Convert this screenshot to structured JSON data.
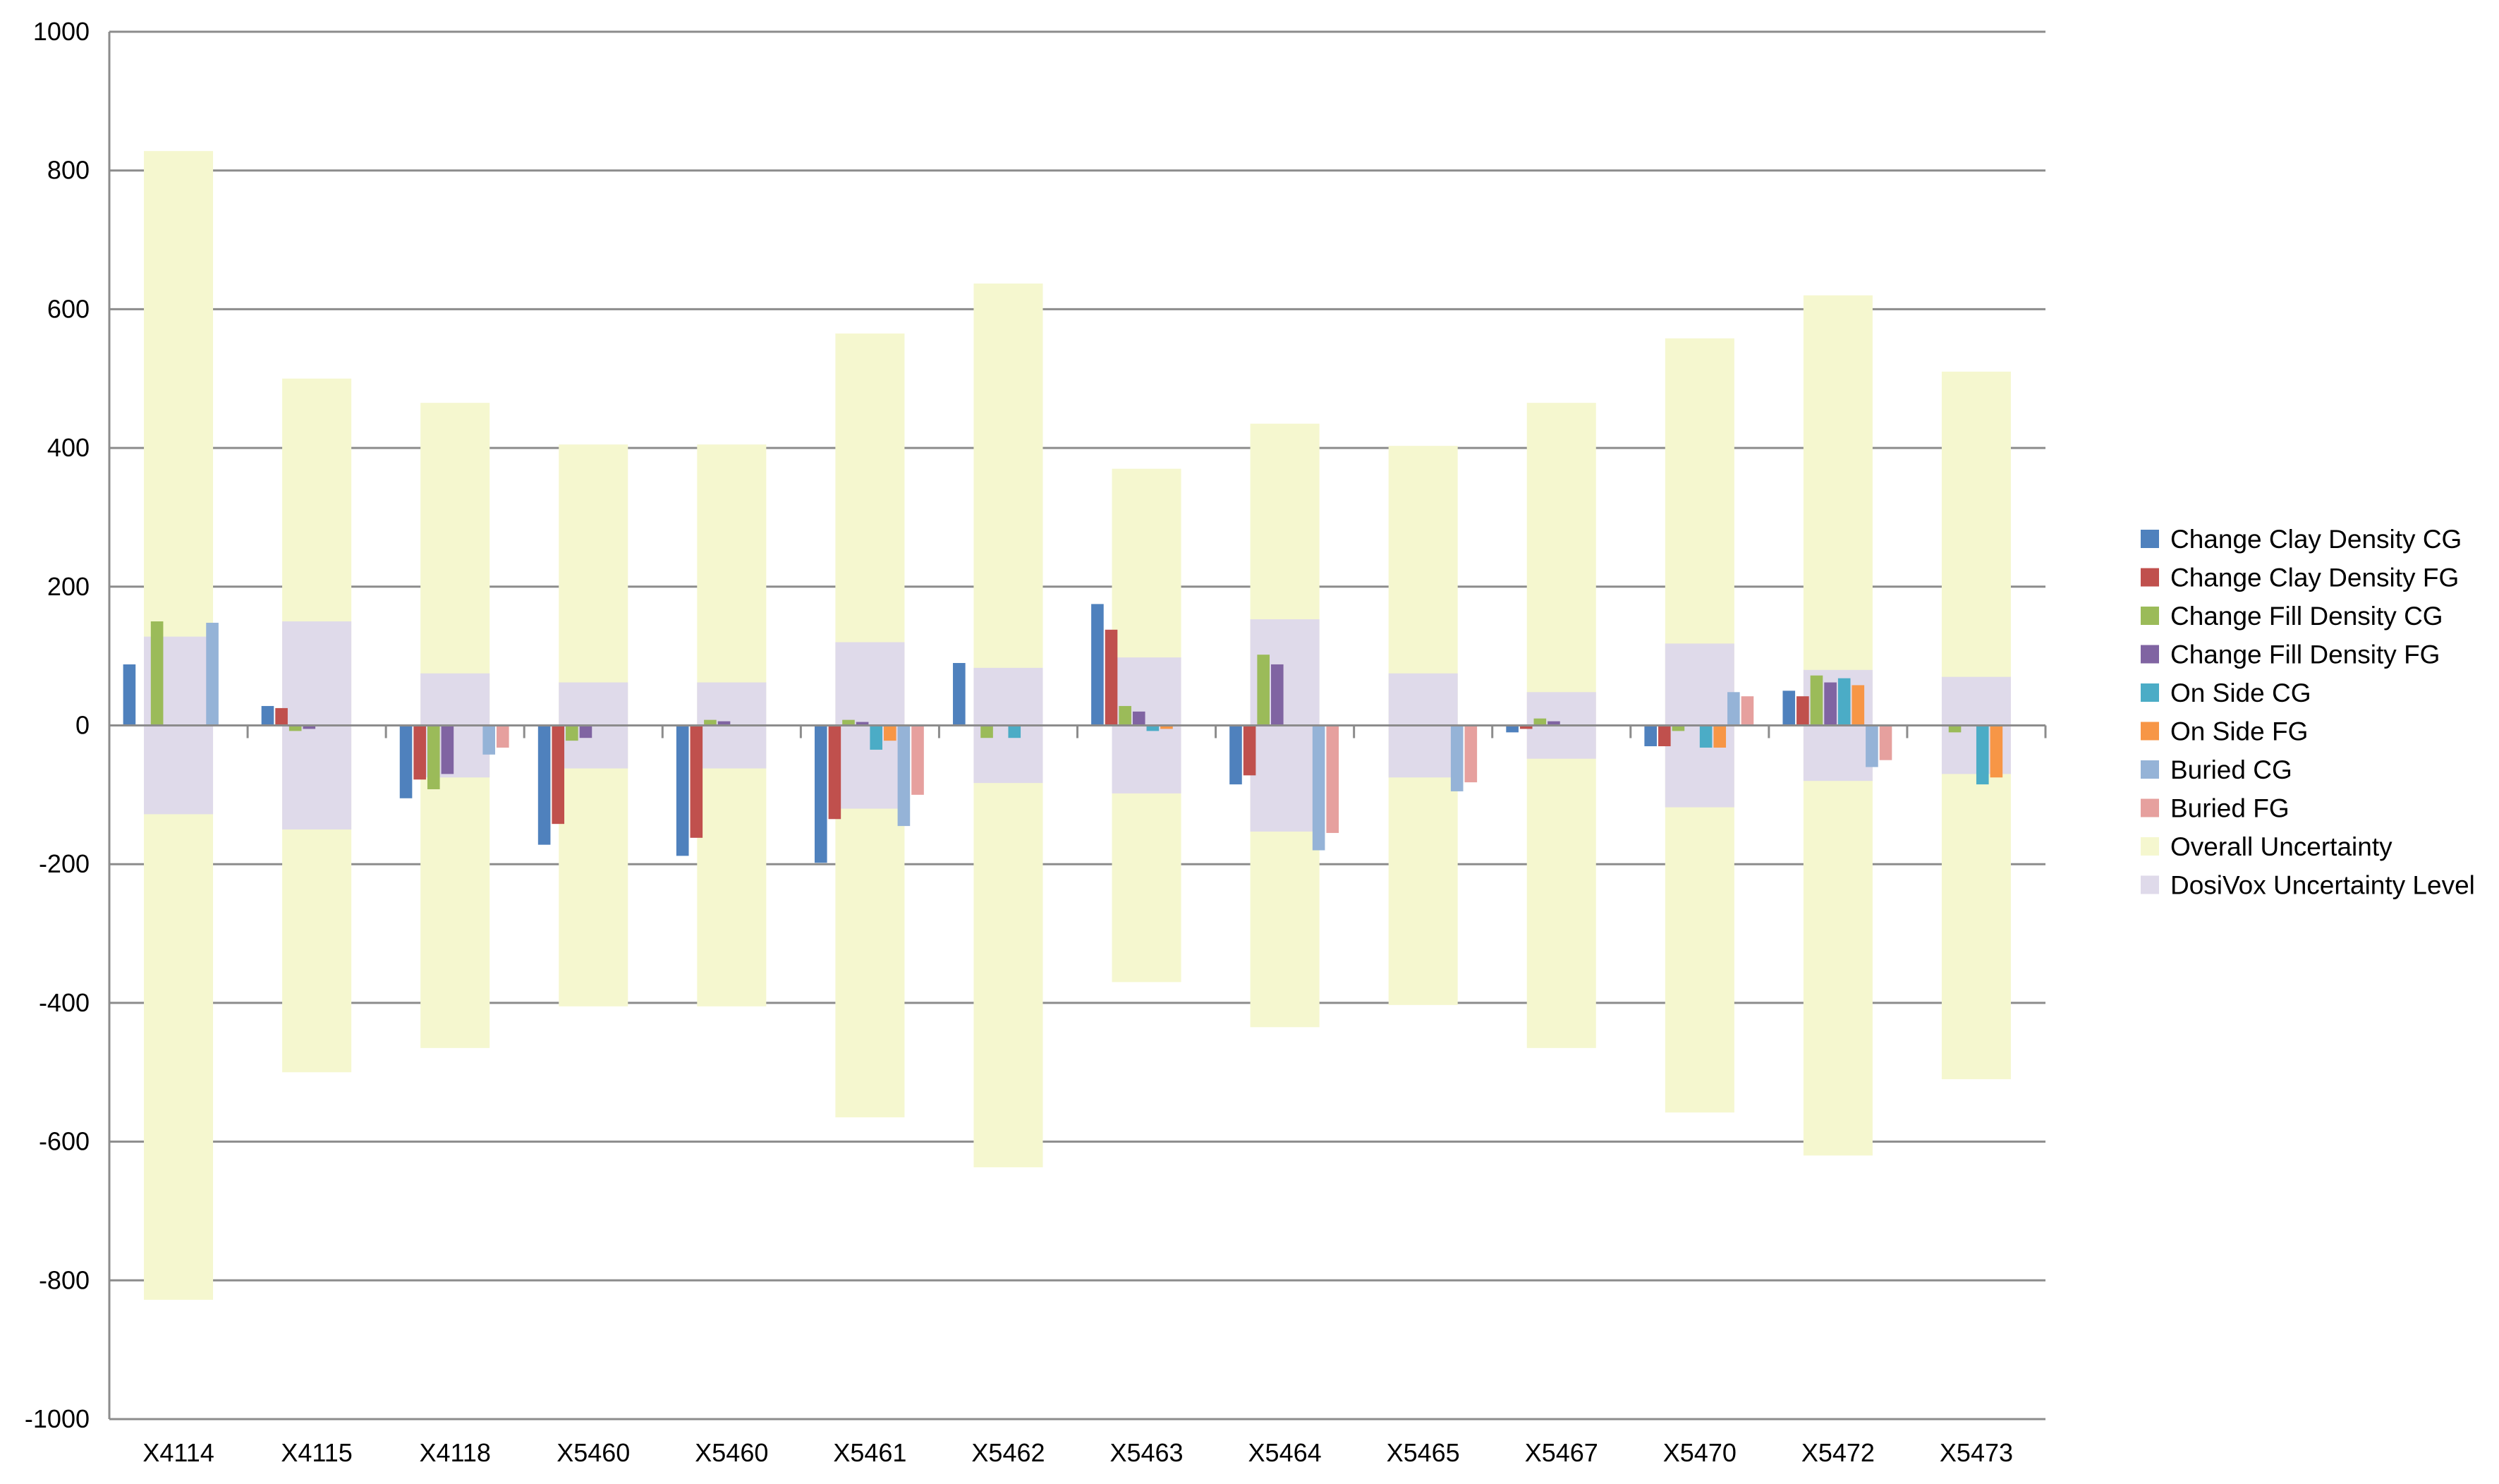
{
  "chart_data": {
    "type": "bar",
    "title": "",
    "xlabel": "",
    "ylabel": "",
    "ylim": [
      -1000,
      1000
    ],
    "yticks": [
      1000,
      800,
      600,
      400,
      200,
      0,
      -200,
      -400,
      -600,
      -800,
      -1000
    ],
    "grid": true,
    "legend_position": "right",
    "categories": [
      "X4114",
      "X4115",
      "X4118",
      "X5460",
      "X5460",
      "X5461",
      "X5462",
      "X5463",
      "X5464",
      "X5465",
      "X5467",
      "X5470",
      "X5472",
      "X5473"
    ],
    "series": [
      {
        "name": "Change Clay Density CG",
        "color": "#4f81bd",
        "values": [
          88,
          28,
          0,
          0,
          0,
          0,
          90,
          175,
          -85,
          0,
          -10,
          -30,
          50,
          0
        ]
      },
      {
        "name": "Change Clay Density FG",
        "color": "#c0504d",
        "values": [
          0,
          25,
          0,
          0,
          0,
          0,
          0,
          138,
          -72,
          0,
          -5,
          -30,
          42,
          0
        ]
      },
      {
        "name": "Change Fill Density CG",
        "color": "#9bbb59",
        "values": [
          150,
          -8,
          -92,
          -22,
          8,
          8,
          -18,
          28,
          102,
          0,
          10,
          -8,
          72,
          -10
        ]
      },
      {
        "name": "Change Fill Density FG",
        "color": "#8064a2",
        "values": [
          0,
          -5,
          -70,
          -18,
          6,
          5,
          0,
          20,
          88,
          0,
          6,
          0,
          62,
          0
        ]
      },
      {
        "name": "On Side CG",
        "color": "#4bacc6",
        "values": [
          0,
          0,
          0,
          0,
          0,
          -35,
          -18,
          -8,
          0,
          0,
          0,
          -32,
          68,
          -85
        ]
      },
      {
        "name": "On Side FG",
        "color": "#f79646",
        "values": [
          0,
          0,
          0,
          0,
          0,
          -22,
          0,
          -5,
          0,
          0,
          0,
          -32,
          58,
          -75
        ]
      },
      {
        "name": "Buried CG",
        "color": "#95b3d7",
        "values": [
          148,
          0,
          -42,
          0,
          0,
          -145,
          0,
          0,
          -180,
          -95,
          0,
          48,
          -60,
          0
        ]
      },
      {
        "name": "Buried FG",
        "color": "#e6a09e",
        "values": [
          0,
          0,
          -32,
          0,
          0,
          -100,
          0,
          0,
          -155,
          -82,
          0,
          42,
          -50,
          0
        ]
      }
    ],
    "clay_fg_negatives": [
      0,
      0,
      -78,
      -142,
      -162,
      -135,
      0,
      0,
      0,
      0,
      0,
      0,
      0,
      0
    ],
    "clay_cg_negatives": [
      0,
      0,
      -105,
      -172,
      -188,
      -198,
      0,
      0,
      0,
      0,
      0,
      0,
      0,
      0
    ],
    "uncertainty_series": [
      {
        "name": "Overall Uncertainty",
        "color": "#f5f7cf",
        "values": [
          828,
          500,
          465,
          405,
          405,
          565,
          637,
          370,
          435,
          403,
          465,
          558,
          620,
          510
        ]
      },
      {
        "name": "DosiVox Uncertainty Level",
        "color": "#dfdaea",
        "values": [
          128,
          150,
          75,
          62,
          62,
          120,
          83,
          98,
          153,
          75,
          48,
          118,
          80,
          70
        ]
      }
    ],
    "legend": [
      "Change Clay Density CG",
      "Change Clay Density FG",
      "Change Fill Density CG",
      "Change Fill Density FG",
      "On Side CG",
      "On Side FG",
      "Buried CG",
      "Buried FG",
      "Overall Uncertainty",
      "DosiVox Uncertainty Level"
    ]
  }
}
